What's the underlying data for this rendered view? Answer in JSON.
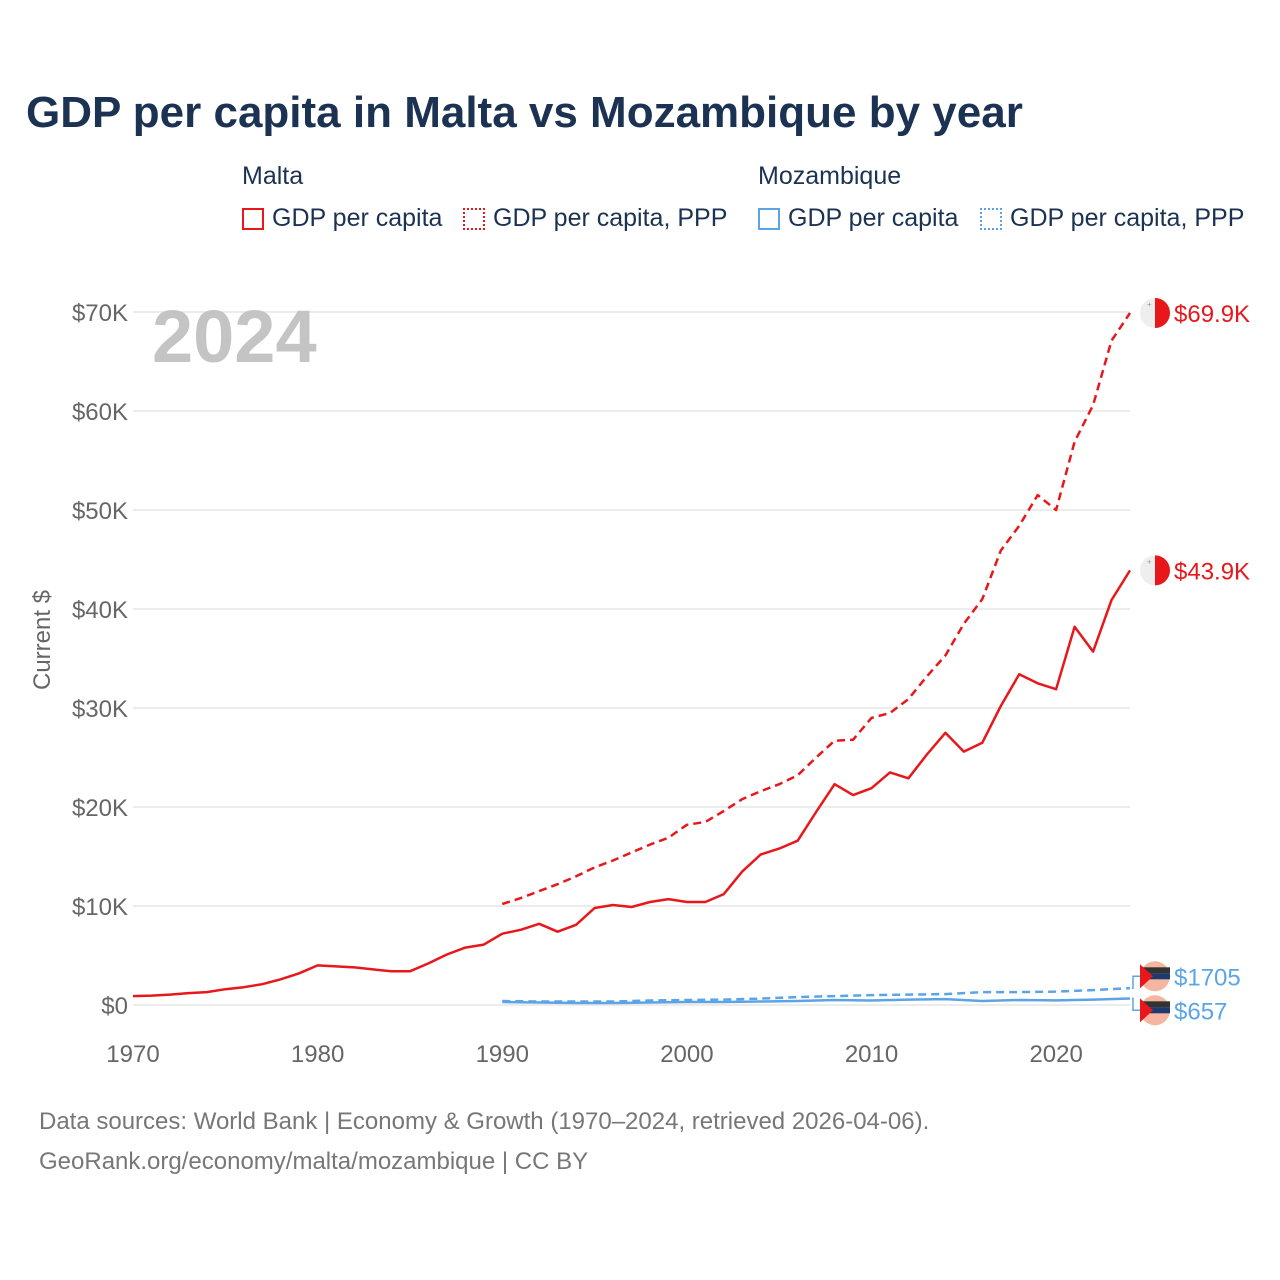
{
  "title": "GDP per capita in Malta vs Mozambique by year",
  "legend": {
    "groups": [
      {
        "country": "Malta",
        "color": "#e8171b",
        "items": [
          {
            "label": "GDP per capita",
            "style": "solid"
          },
          {
            "label": "GDP per capita, PPP",
            "style": "dotted"
          }
        ]
      },
      {
        "country": "Mozambique",
        "color": "#5ca4e6",
        "items": [
          {
            "label": "GDP per capita",
            "style": "solid"
          },
          {
            "label": "GDP per capita, PPP",
            "style": "dotted"
          }
        ]
      }
    ]
  },
  "year_watermark": "2024",
  "footer": {
    "line1": "Data sources: World Bank | Economy & Growth (1970–2024, retrieved 2026-04-06).",
    "line2": "GeoRank.org/economy/malta/mozambique | CC BY"
  },
  "chart_data": {
    "type": "line",
    "title": "GDP per capita in Malta vs Mozambique by year",
    "xlabel": "",
    "ylabel": "Current $",
    "xlim": [
      1970,
      2024
    ],
    "ylim": [
      0,
      70000
    ],
    "x_ticks": [
      1970,
      1980,
      1990,
      2000,
      2010,
      2020
    ],
    "x_tick_labels": [
      "1970",
      "1980",
      "1990",
      "2000",
      "2010",
      "2020"
    ],
    "y_ticks": [
      0,
      10000,
      20000,
      30000,
      40000,
      50000,
      60000,
      70000
    ],
    "y_tick_labels": [
      "$0",
      "$10K",
      "$20K",
      "$30K",
      "$40K",
      "$50K",
      "$60K",
      "$70K"
    ],
    "grid": true,
    "series": [
      {
        "name": "Malta GDP per capita",
        "country": "Malta",
        "color": "#e8171b",
        "dash": "solid",
        "end_label": "$43.9K",
        "x": [
          1970,
          1971,
          1972,
          1973,
          1974,
          1975,
          1976,
          1977,
          1978,
          1979,
          1980,
          1981,
          1982,
          1983,
          1984,
          1985,
          1986,
          1987,
          1988,
          1989,
          1990,
          1991,
          1992,
          1993,
          1994,
          1995,
          1996,
          1997,
          1998,
          1999,
          2000,
          2001,
          2002,
          2003,
          2004,
          2005,
          2006,
          2007,
          2008,
          2009,
          2010,
          2011,
          2012,
          2013,
          2014,
          2015,
          2016,
          2017,
          2018,
          2019,
          2020,
          2021,
          2022,
          2023,
          2024
        ],
        "values": [
          900,
          950,
          1050,
          1200,
          1300,
          1600,
          1800,
          2100,
          2600,
          3200,
          4000,
          3900,
          3800,
          3600,
          3400,
          3400,
          4200,
          5100,
          5800,
          6100,
          7200,
          7600,
          8200,
          7400,
          8100,
          9800,
          10100,
          9900,
          10400,
          10700,
          10400,
          10400,
          11200,
          13500,
          15200,
          15800,
          16600,
          19500,
          22300,
          21200,
          21900,
          23500,
          22900,
          25300,
          27500,
          25600,
          26500,
          30200,
          33400,
          32500,
          31900,
          38200,
          35700,
          40900,
          43900
        ]
      },
      {
        "name": "Malta GDP per capita, PPP",
        "country": "Malta",
        "color": "#e8171b",
        "dash": "dashed",
        "end_label": "$69.9K",
        "x": [
          1990,
          1991,
          1992,
          1993,
          1994,
          1995,
          1996,
          1997,
          1998,
          1999,
          2000,
          2001,
          2002,
          2003,
          2004,
          2005,
          2006,
          2007,
          2008,
          2009,
          2010,
          2011,
          2012,
          2013,
          2014,
          2015,
          2016,
          2017,
          2018,
          2019,
          2020,
          2021,
          2022,
          2023,
          2024
        ],
        "values": [
          10200,
          10800,
          11500,
          12200,
          13000,
          13900,
          14600,
          15400,
          16200,
          16900,
          18200,
          18500,
          19600,
          20800,
          21600,
          22300,
          23200,
          25000,
          26700,
          26800,
          29000,
          29500,
          30900,
          33200,
          35300,
          38500,
          41000,
          45900,
          48400,
          51500,
          50000,
          56900,
          60600,
          67100,
          69900
        ]
      },
      {
        "name": "Mozambique GDP per capita",
        "country": "Mozambique",
        "color": "#5ca4e6",
        "dash": "solid",
        "end_label": "$657",
        "x": [
          1990,
          1992,
          1994,
          1996,
          1998,
          2000,
          2002,
          2004,
          2006,
          2008,
          2010,
          2012,
          2014,
          2016,
          2018,
          2020,
          2022,
          2024
        ],
        "values": [
          300,
          250,
          200,
          200,
          250,
          300,
          300,
          350,
          400,
          500,
          450,
          550,
          600,
          400,
          500,
          460,
          550,
          657
        ]
      },
      {
        "name": "Mozambique GDP per capita, PPP",
        "country": "Mozambique",
        "color": "#5ca4e6",
        "dash": "dashed",
        "end_label": "$1705",
        "x": [
          1990,
          1992,
          1994,
          1996,
          1998,
          2000,
          2002,
          2004,
          2006,
          2008,
          2010,
          2012,
          2014,
          2016,
          2018,
          2020,
          2022,
          2024
        ],
        "values": [
          400,
          350,
          350,
          350,
          450,
          500,
          550,
          650,
          800,
          900,
          1000,
          1050,
          1100,
          1300,
          1300,
          1350,
          1500,
          1705
        ]
      }
    ]
  }
}
